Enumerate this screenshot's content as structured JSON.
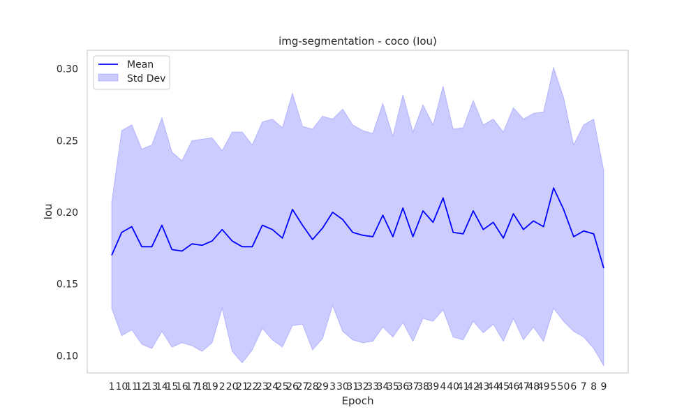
{
  "chart_data": {
    "type": "line",
    "title": "img-segmentation - coco (Iou)",
    "xlabel": "Epoch",
    "ylabel": "Iou",
    "ylim": [
      0.088,
      0.313
    ],
    "yticks": [
      "0.10",
      "0.15",
      "0.20",
      "0.25",
      "0.30"
    ],
    "ytick_values": [
      0.1,
      0.15,
      0.2,
      0.25,
      0.3
    ],
    "grid": false,
    "legend_position": "upper-left",
    "categories": [
      "1",
      "10",
      "11",
      "12",
      "13",
      "14",
      "15",
      "16",
      "17",
      "18",
      "19",
      "2",
      "20",
      "21",
      "22",
      "23",
      "24",
      "25",
      "26",
      "27",
      "28",
      "29",
      "3",
      "30",
      "31",
      "32",
      "33",
      "34",
      "35",
      "36",
      "37",
      "38",
      "39",
      "4",
      "40",
      "41",
      "42",
      "43",
      "44",
      "45",
      "46",
      "47",
      "48",
      "49",
      "5",
      "50",
      "6",
      "7",
      "8",
      "9"
    ],
    "series": [
      {
        "name": "Mean",
        "kind": "line",
        "color": "#0000ff",
        "values": [
          0.17,
          0.186,
          0.19,
          0.176,
          0.176,
          0.191,
          0.174,
          0.173,
          0.178,
          0.177,
          0.18,
          0.188,
          0.18,
          0.176,
          0.176,
          0.191,
          0.188,
          0.182,
          0.202,
          0.191,
          0.181,
          0.189,
          0.2,
          0.195,
          0.186,
          0.184,
          0.183,
          0.198,
          0.183,
          0.203,
          0.183,
          0.201,
          0.193,
          0.21,
          0.186,
          0.185,
          0.201,
          0.188,
          0.193,
          0.182,
          0.199,
          0.188,
          0.194,
          0.19,
          0.217,
          0.202,
          0.183,
          0.187,
          0.185,
          0.161
        ]
      },
      {
        "name": "Std Dev",
        "kind": "band",
        "color": "#0000ff",
        "upper": [
          0.207,
          0.257,
          0.261,
          0.244,
          0.247,
          0.266,
          0.242,
          0.236,
          0.25,
          0.251,
          0.252,
          0.243,
          0.256,
          0.256,
          0.247,
          0.263,
          0.265,
          0.259,
          0.283,
          0.26,
          0.258,
          0.267,
          0.265,
          0.272,
          0.261,
          0.257,
          0.255,
          0.276,
          0.253,
          0.282,
          0.256,
          0.275,
          0.261,
          0.288,
          0.258,
          0.259,
          0.278,
          0.261,
          0.265,
          0.256,
          0.273,
          0.265,
          0.269,
          0.27,
          0.301,
          0.28,
          0.247,
          0.261,
          0.265,
          0.229
        ],
        "lower": [
          0.133,
          0.114,
          0.118,
          0.108,
          0.105,
          0.117,
          0.106,
          0.109,
          0.107,
          0.103,
          0.109,
          0.133,
          0.103,
          0.095,
          0.104,
          0.119,
          0.111,
          0.106,
          0.121,
          0.122,
          0.104,
          0.112,
          0.135,
          0.117,
          0.111,
          0.109,
          0.11,
          0.12,
          0.113,
          0.123,
          0.11,
          0.126,
          0.124,
          0.132,
          0.113,
          0.111,
          0.124,
          0.116,
          0.122,
          0.11,
          0.126,
          0.111,
          0.12,
          0.11,
          0.133,
          0.124,
          0.117,
          0.113,
          0.105,
          0.093
        ]
      }
    ]
  }
}
